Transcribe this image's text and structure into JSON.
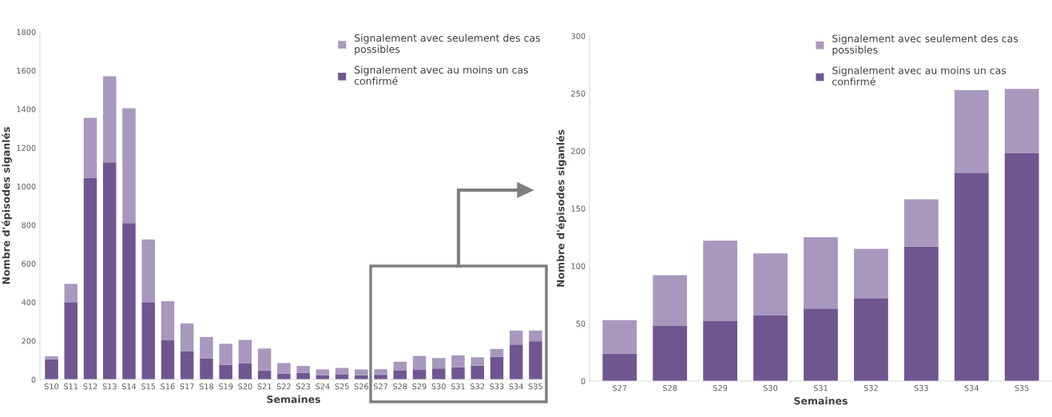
{
  "chart_data": [
    {
      "type": "bar",
      "stacked": true,
      "xlabel": "Semaines",
      "ylabel": "Nombre d'épisodes siganlés",
      "categories": [
        "S10",
        "S11",
        "S12",
        "S13",
        "S14",
        "S15",
        "S16",
        "S17",
        "S18",
        "S19",
        "S20",
        "S21",
        "S22",
        "S23",
        "S24",
        "S25",
        "S26",
        "S27",
        "S28",
        "S29",
        "S30",
        "S31",
        "S32",
        "S33",
        "S34",
        "S35"
      ],
      "series": [
        {
          "name": "Signalement avec au moins un cas confirmé",
          "color": "#6f5690",
          "values": [
            105,
            400,
            1045,
            1125,
            810,
            400,
            205,
            145,
            110,
            75,
            85,
            45,
            30,
            35,
            22,
            25,
            22,
            24,
            48,
            52,
            57,
            63,
            72,
            117,
            181,
            198
          ]
        },
        {
          "name": "Signalement avec seulement des cas possibles",
          "color": "#a898bd",
          "values": [
            15,
            95,
            310,
            445,
            595,
            325,
            200,
            145,
            110,
            110,
            120,
            115,
            55,
            35,
            30,
            35,
            30,
            29,
            44,
            70,
            54,
            62,
            43,
            41,
            72,
            56
          ]
        }
      ],
      "ylim": [
        0,
        1800
      ],
      "yticks": [
        0,
        200,
        400,
        600,
        800,
        1000,
        1200,
        1400,
        1600,
        1800
      ],
      "grid": false,
      "legend": "top right"
    },
    {
      "type": "bar",
      "stacked": true,
      "xlabel": "Semaines",
      "ylabel": "Nombre d'épisodes siganlés",
      "categories": [
        "S27",
        "S28",
        "S29",
        "S30",
        "S31",
        "S32",
        "S33",
        "S34",
        "S35"
      ],
      "series": [
        {
          "name": "Signalement avec au moins un cas confirmé",
          "color": "#6f5690",
          "values": [
            24,
            48,
            52,
            57,
            63,
            72,
            117,
            181,
            198
          ]
        },
        {
          "name": "Signalement avec seulement des cas possibles",
          "color": "#a898bd",
          "values": [
            29,
            44,
            70,
            54,
            62,
            43,
            41,
            72,
            56
          ]
        }
      ],
      "ylim": [
        0,
        300
      ],
      "yticks": [
        0,
        50,
        100,
        150,
        200,
        250,
        300
      ],
      "grid": false,
      "legend": "top right"
    }
  ]
}
